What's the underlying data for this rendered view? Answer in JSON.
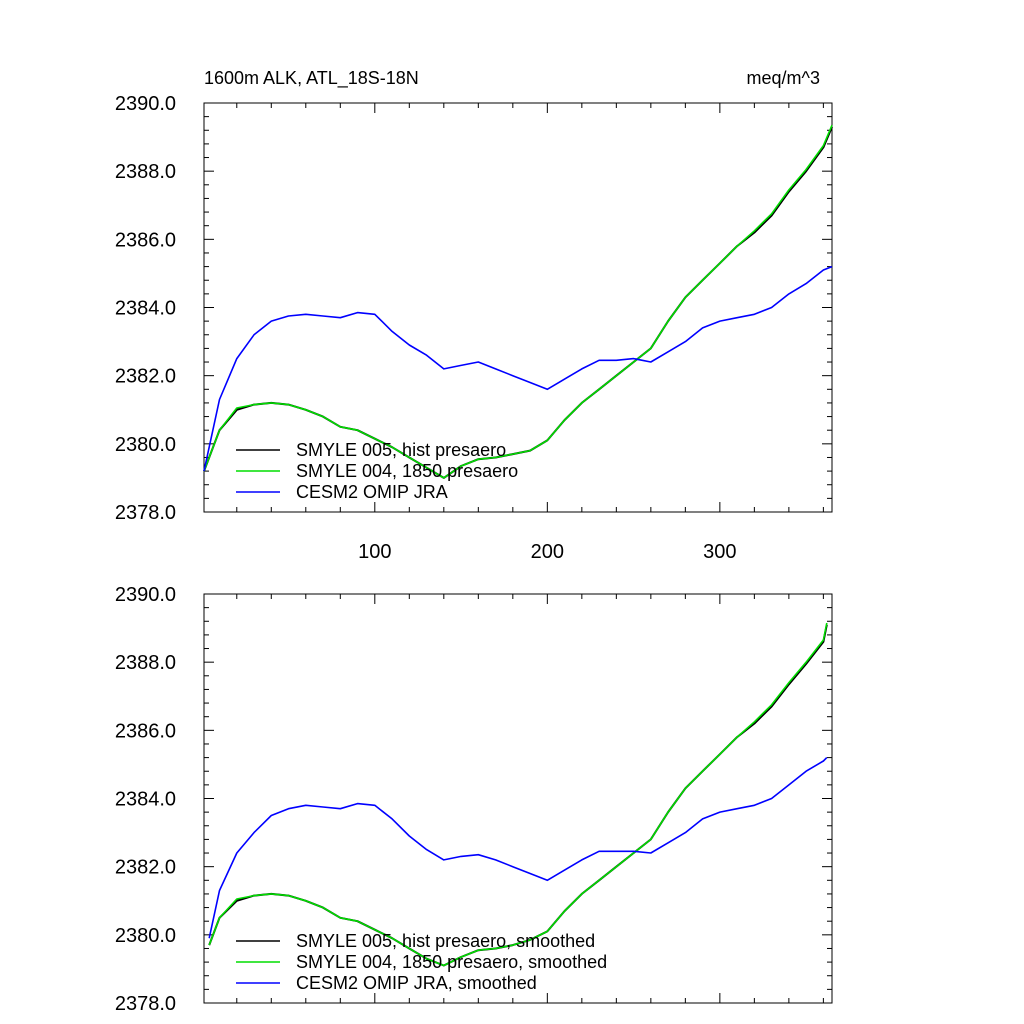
{
  "chart_data": [
    {
      "type": "line",
      "title_left": "1600m ALK, ATL_18S-18N",
      "title_right": "meq/m^3",
      "xlim": [
        1,
        365
      ],
      "ylim": [
        2378.0,
        2390.0
      ],
      "x_ticks": [
        100,
        200,
        300
      ],
      "x_tick_labels": [
        "100",
        "200",
        "300"
      ],
      "y_ticks": [
        2378.0,
        2380.0,
        2382.0,
        2384.0,
        2386.0,
        2388.0,
        2390.0
      ],
      "y_tick_labels": [
        "2378.0",
        "2380.0",
        "2382.0",
        "2384.0",
        "2386.0",
        "2388.0",
        "2390.0"
      ],
      "legend_placement": "bottom-left",
      "series": [
        {
          "name": "SMYLE 005, hist presaero",
          "color": "#000000",
          "points": [
            [
              1,
              2379.2
            ],
            [
              10,
              2380.4
            ],
            [
              20,
              2381.0
            ],
            [
              30,
              2381.15
            ],
            [
              40,
              2381.2
            ],
            [
              50,
              2381.15
            ],
            [
              60,
              2381.0
            ],
            [
              70,
              2380.8
            ],
            [
              80,
              2380.5
            ],
            [
              90,
              2380.4
            ],
            [
              100,
              2380.15
            ],
            [
              110,
              2379.9
            ],
            [
              120,
              2379.6
            ],
            [
              130,
              2379.3
            ],
            [
              140,
              2379.0
            ],
            [
              150,
              2379.35
            ],
            [
              160,
              2379.55
            ],
            [
              170,
              2379.6
            ],
            [
              180,
              2379.7
            ],
            [
              190,
              2379.8
            ],
            [
              200,
              2380.1
            ],
            [
              210,
              2380.7
            ],
            [
              220,
              2381.2
            ],
            [
              230,
              2381.6
            ],
            [
              240,
              2382.0
            ],
            [
              250,
              2382.4
            ],
            [
              260,
              2382.8
            ],
            [
              270,
              2383.6
            ],
            [
              280,
              2384.3
            ],
            [
              290,
              2384.8
            ],
            [
              300,
              2385.3
            ],
            [
              310,
              2385.8
            ],
            [
              320,
              2386.2
            ],
            [
              330,
              2386.7
            ],
            [
              340,
              2387.4
            ],
            [
              350,
              2388.0
            ],
            [
              360,
              2388.7
            ],
            [
              365,
              2389.3
            ]
          ]
        },
        {
          "name": "SMYLE 004, 1850 presaero",
          "color": "#00dd00",
          "points": [
            [
              1,
              2379.2
            ],
            [
              10,
              2380.4
            ],
            [
              20,
              2381.05
            ],
            [
              30,
              2381.15
            ],
            [
              40,
              2381.2
            ],
            [
              50,
              2381.15
            ],
            [
              60,
              2381.0
            ],
            [
              70,
              2380.8
            ],
            [
              80,
              2380.5
            ],
            [
              90,
              2380.4
            ],
            [
              100,
              2380.15
            ],
            [
              110,
              2379.9
            ],
            [
              120,
              2379.6
            ],
            [
              130,
              2379.3
            ],
            [
              140,
              2379.0
            ],
            [
              150,
              2379.35
            ],
            [
              160,
              2379.55
            ],
            [
              170,
              2379.6
            ],
            [
              180,
              2379.7
            ],
            [
              190,
              2379.8
            ],
            [
              200,
              2380.1
            ],
            [
              210,
              2380.7
            ],
            [
              220,
              2381.2
            ],
            [
              230,
              2381.6
            ],
            [
              240,
              2382.0
            ],
            [
              250,
              2382.4
            ],
            [
              260,
              2382.8
            ],
            [
              270,
              2383.6
            ],
            [
              280,
              2384.3
            ],
            [
              290,
              2384.8
            ],
            [
              300,
              2385.3
            ],
            [
              310,
              2385.8
            ],
            [
              320,
              2386.25
            ],
            [
              330,
              2386.75
            ],
            [
              340,
              2387.45
            ],
            [
              350,
              2388.05
            ],
            [
              360,
              2388.75
            ],
            [
              365,
              2389.35
            ]
          ]
        },
        {
          "name": "CESM2 OMIP JRA",
          "color": "#0000ff",
          "points": [
            [
              1,
              2379.2
            ],
            [
              10,
              2381.3
            ],
            [
              20,
              2382.5
            ],
            [
              30,
              2383.2
            ],
            [
              40,
              2383.6
            ],
            [
              50,
              2383.75
            ],
            [
              60,
              2383.8
            ],
            [
              70,
              2383.75
            ],
            [
              80,
              2383.7
            ],
            [
              90,
              2383.85
            ],
            [
              100,
              2383.8
            ],
            [
              110,
              2383.3
            ],
            [
              120,
              2382.9
            ],
            [
              130,
              2382.6
            ],
            [
              140,
              2382.2
            ],
            [
              150,
              2382.3
            ],
            [
              160,
              2382.4
            ],
            [
              170,
              2382.2
            ],
            [
              180,
              2382.0
            ],
            [
              190,
              2381.8
            ],
            [
              200,
              2381.6
            ],
            [
              210,
              2381.9
            ],
            [
              220,
              2382.2
            ],
            [
              230,
              2382.45
            ],
            [
              240,
              2382.45
            ],
            [
              250,
              2382.5
            ],
            [
              260,
              2382.4
            ],
            [
              270,
              2382.7
            ],
            [
              280,
              2383.0
            ],
            [
              290,
              2383.4
            ],
            [
              300,
              2383.6
            ],
            [
              310,
              2383.7
            ],
            [
              320,
              2383.8
            ],
            [
              330,
              2384.0
            ],
            [
              340,
              2384.4
            ],
            [
              350,
              2384.7
            ],
            [
              360,
              2385.1
            ],
            [
              365,
              2385.2
            ]
          ]
        }
      ]
    },
    {
      "type": "line",
      "xlim": [
        1,
        365
      ],
      "ylim": [
        2378.0,
        2390.0
      ],
      "x_ticks": [
        100,
        200,
        300
      ],
      "y_ticks": [
        2378.0,
        2380.0,
        2382.0,
        2384.0,
        2386.0,
        2388.0,
        2390.0
      ],
      "y_tick_labels": [
        "2378.0",
        "2380.0",
        "2382.0",
        "2384.0",
        "2386.0",
        "2388.0",
        "2390.0"
      ],
      "legend_placement": "bottom-left",
      "series": [
        {
          "name": "SMYLE 005, hist presaero, smoothed",
          "color": "#000000",
          "points": [
            [
              4,
              2379.7
            ],
            [
              10,
              2380.5
            ],
            [
              20,
              2381.0
            ],
            [
              30,
              2381.15
            ],
            [
              40,
              2381.2
            ],
            [
              50,
              2381.15
            ],
            [
              60,
              2381.0
            ],
            [
              70,
              2380.8
            ],
            [
              80,
              2380.5
            ],
            [
              90,
              2380.4
            ],
            [
              100,
              2380.15
            ],
            [
              110,
              2379.9
            ],
            [
              120,
              2379.6
            ],
            [
              130,
              2379.3
            ],
            [
              140,
              2379.1
            ],
            [
              150,
              2379.35
            ],
            [
              160,
              2379.55
            ],
            [
              170,
              2379.6
            ],
            [
              180,
              2379.7
            ],
            [
              190,
              2379.85
            ],
            [
              200,
              2380.1
            ],
            [
              210,
              2380.7
            ],
            [
              220,
              2381.2
            ],
            [
              230,
              2381.6
            ],
            [
              240,
              2382.0
            ],
            [
              250,
              2382.4
            ],
            [
              260,
              2382.8
            ],
            [
              270,
              2383.6
            ],
            [
              280,
              2384.3
            ],
            [
              290,
              2384.8
            ],
            [
              300,
              2385.3
            ],
            [
              310,
              2385.8
            ],
            [
              320,
              2386.2
            ],
            [
              330,
              2386.7
            ],
            [
              340,
              2387.35
            ],
            [
              350,
              2387.95
            ],
            [
              360,
              2388.6
            ],
            [
              362,
              2389.1
            ]
          ]
        },
        {
          "name": "SMYLE 004, 1850 presaero, smoothed",
          "color": "#00dd00",
          "points": [
            [
              4,
              2379.7
            ],
            [
              10,
              2380.5
            ],
            [
              20,
              2381.05
            ],
            [
              30,
              2381.15
            ],
            [
              40,
              2381.2
            ],
            [
              50,
              2381.15
            ],
            [
              60,
              2381.0
            ],
            [
              70,
              2380.8
            ],
            [
              80,
              2380.5
            ],
            [
              90,
              2380.4
            ],
            [
              100,
              2380.15
            ],
            [
              110,
              2379.9
            ],
            [
              120,
              2379.6
            ],
            [
              130,
              2379.3
            ],
            [
              140,
              2379.1
            ],
            [
              150,
              2379.35
            ],
            [
              160,
              2379.55
            ],
            [
              170,
              2379.6
            ],
            [
              180,
              2379.7
            ],
            [
              190,
              2379.85
            ],
            [
              200,
              2380.1
            ],
            [
              210,
              2380.7
            ],
            [
              220,
              2381.2
            ],
            [
              230,
              2381.6
            ],
            [
              240,
              2382.0
            ],
            [
              250,
              2382.4
            ],
            [
              260,
              2382.8
            ],
            [
              270,
              2383.6
            ],
            [
              280,
              2384.3
            ],
            [
              290,
              2384.8
            ],
            [
              300,
              2385.3
            ],
            [
              310,
              2385.8
            ],
            [
              320,
              2386.25
            ],
            [
              330,
              2386.75
            ],
            [
              340,
              2387.4
            ],
            [
              350,
              2388.0
            ],
            [
              360,
              2388.65
            ],
            [
              362,
              2389.15
            ]
          ]
        },
        {
          "name": "CESM2 OMIP JRA, smoothed",
          "color": "#0000ff",
          "points": [
            [
              4,
              2379.9
            ],
            [
              10,
              2381.3
            ],
            [
              20,
              2382.4
            ],
            [
              30,
              2383.0
            ],
            [
              40,
              2383.5
            ],
            [
              50,
              2383.7
            ],
            [
              60,
              2383.8
            ],
            [
              70,
              2383.75
            ],
            [
              80,
              2383.7
            ],
            [
              90,
              2383.85
            ],
            [
              100,
              2383.8
            ],
            [
              110,
              2383.4
            ],
            [
              120,
              2382.9
            ],
            [
              130,
              2382.5
            ],
            [
              140,
              2382.2
            ],
            [
              150,
              2382.3
            ],
            [
              160,
              2382.35
            ],
            [
              170,
              2382.2
            ],
            [
              180,
              2382.0
            ],
            [
              190,
              2381.8
            ],
            [
              200,
              2381.6
            ],
            [
              210,
              2381.9
            ],
            [
              220,
              2382.2
            ],
            [
              230,
              2382.45
            ],
            [
              240,
              2382.45
            ],
            [
              250,
              2382.45
            ],
            [
              260,
              2382.4
            ],
            [
              270,
              2382.7
            ],
            [
              280,
              2383.0
            ],
            [
              290,
              2383.4
            ],
            [
              300,
              2383.6
            ],
            [
              310,
              2383.7
            ],
            [
              320,
              2383.8
            ],
            [
              330,
              2384.0
            ],
            [
              340,
              2384.4
            ],
            [
              350,
              2384.8
            ],
            [
              360,
              2385.1
            ],
            [
              362,
              2385.2
            ]
          ]
        }
      ]
    }
  ]
}
